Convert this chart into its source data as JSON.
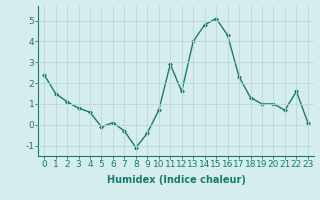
{
  "x": [
    0,
    1,
    2,
    3,
    4,
    5,
    6,
    7,
    8,
    9,
    10,
    11,
    12,
    13,
    14,
    15,
    16,
    17,
    18,
    19,
    20,
    21,
    22,
    23
  ],
  "y": [
    2.4,
    1.5,
    1.1,
    0.8,
    0.6,
    -0.1,
    0.1,
    -0.3,
    -1.1,
    -0.4,
    0.7,
    2.9,
    1.6,
    4.0,
    4.8,
    5.1,
    4.3,
    2.3,
    1.3,
    1.0,
    1.0,
    0.7,
    1.6,
    0.1
  ],
  "line_color": "#1a7a6e",
  "marker": "D",
  "marker_size": 2.0,
  "line_width": 1.0,
  "bg_color": "#d5eded",
  "grid_color": "#b8d8d8",
  "xlabel": "Humidex (Indice chaleur)",
  "xlabel_fontsize": 7,
  "tick_fontsize": 6.5,
  "ylim": [
    -1.5,
    5.7
  ],
  "xlim": [
    -0.5,
    23.5
  ],
  "yticks": [
    -1,
    0,
    1,
    2,
    3,
    4,
    5
  ],
  "xticks": [
    0,
    1,
    2,
    3,
    4,
    5,
    6,
    7,
    8,
    9,
    10,
    11,
    12,
    13,
    14,
    15,
    16,
    17,
    18,
    19,
    20,
    21,
    22,
    23
  ]
}
